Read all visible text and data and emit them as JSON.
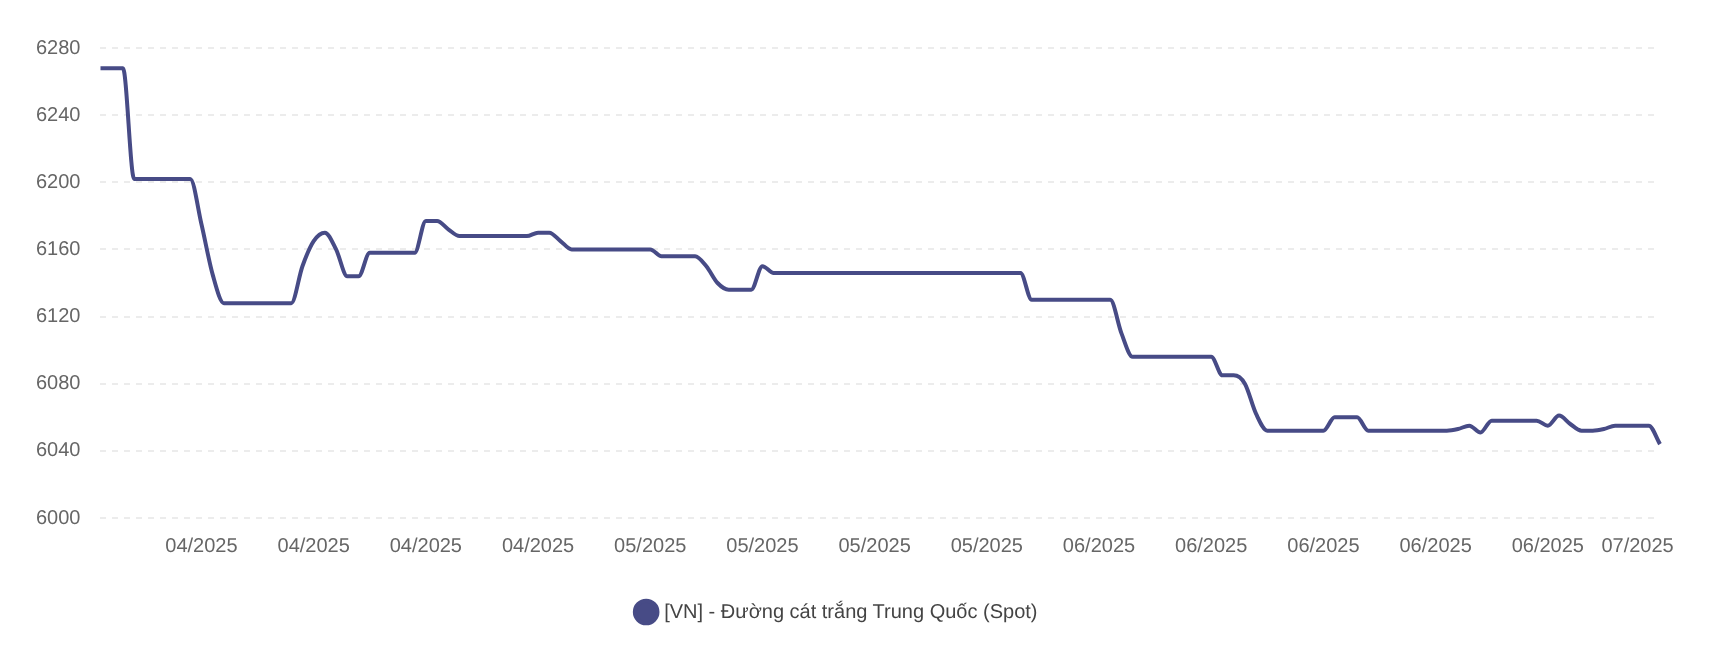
{
  "chart_data": {
    "type": "line",
    "categories": [
      null,
      null,
      null,
      null,
      null,
      null,
      null,
      null,
      null,
      "04/2025",
      null,
      null,
      null,
      null,
      null,
      null,
      null,
      null,
      null,
      "04/2025",
      null,
      null,
      null,
      null,
      null,
      null,
      null,
      null,
      null,
      "04/2025",
      null,
      null,
      null,
      null,
      null,
      null,
      null,
      null,
      null,
      "04/2025",
      null,
      null,
      null,
      null,
      null,
      null,
      null,
      null,
      null,
      "05/2025",
      null,
      null,
      null,
      null,
      null,
      null,
      null,
      null,
      null,
      "05/2025",
      null,
      null,
      null,
      null,
      null,
      null,
      null,
      null,
      null,
      "05/2025",
      null,
      null,
      null,
      null,
      null,
      null,
      null,
      null,
      null,
      "05/2025",
      null,
      null,
      null,
      null,
      null,
      null,
      null,
      null,
      null,
      "06/2025",
      null,
      null,
      null,
      null,
      null,
      null,
      null,
      null,
      null,
      "06/2025",
      null,
      null,
      null,
      null,
      null,
      null,
      null,
      null,
      null,
      "06/2025",
      null,
      null,
      null,
      null,
      null,
      null,
      null,
      null,
      null,
      "06/2025",
      null,
      null,
      null,
      null,
      null,
      null,
      null,
      null,
      null,
      "06/2025",
      null,
      null,
      null,
      null,
      null,
      null,
      null,
      "07/2025",
      null,
      null
    ],
    "series": [
      {
        "name": "[VN] - Đường cát trắng Trung Quốc (Spot)",
        "color": "#474b86",
        "values": [
          6268,
          6268,
          6268,
          6202,
          6202,
          6202,
          6202,
          6202,
          6202,
          6175,
          6145,
          6128,
          6128,
          6128,
          6128,
          6128,
          6128,
          6128,
          6150,
          6165,
          6170,
          6160,
          6144,
          6144,
          6158,
          6158,
          6158,
          6158,
          6158,
          6177,
          6177,
          6172,
          6168,
          6168,
          6168,
          6168,
          6168,
          6168,
          6168,
          6170,
          6170,
          6165,
          6160,
          6160,
          6160,
          6160,
          6160,
          6160,
          6160,
          6160,
          6156,
          6156,
          6156,
          6156,
          6150,
          6140,
          6136,
          6136,
          6136,
          6150,
          6146,
          6146,
          6146,
          6146,
          6146,
          6146,
          6146,
          6146,
          6146,
          6146,
          6146,
          6146,
          6146,
          6146,
          6146,
          6146,
          6146,
          6146,
          6146,
          6146,
          6146,
          6146,
          6146,
          6130,
          6130,
          6130,
          6130,
          6130,
          6130,
          6130,
          6130,
          6110,
          6096,
          6096,
          6096,
          6096,
          6096,
          6096,
          6096,
          6096,
          6085,
          6085,
          6080,
          6062,
          6052,
          6052,
          6052,
          6052,
          6052,
          6052,
          6060,
          6060,
          6060,
          6052,
          6052,
          6052,
          6052,
          6052,
          6052,
          6052,
          6052,
          6053,
          6055,
          6051,
          6058,
          6058,
          6058,
          6058,
          6058,
          6055,
          6061,
          6056,
          6052,
          6052,
          6053,
          6055,
          6055,
          6055,
          6055,
          6044
        ]
      }
    ],
    "ylim": [
      6000,
      6280
    ],
    "yticks": [
      6000,
      6040,
      6080,
      6120,
      6160,
      6200,
      6240,
      6280
    ],
    "grid": "y",
    "legend": "bottom",
    "marker": "none",
    "line_style": "solid"
  }
}
